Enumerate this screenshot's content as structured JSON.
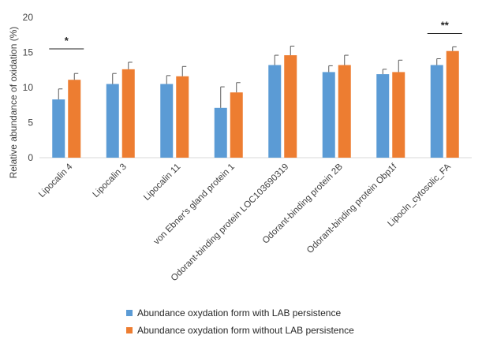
{
  "chart_data": {
    "type": "bar",
    "ylabel": "Relative abundance of oxidation (%)",
    "ylim": [
      0,
      20
    ],
    "yticks": [
      "0",
      "5",
      "10",
      "15",
      "20"
    ],
    "grid": false,
    "legend_position": "bottom",
    "categories": [
      "Lipocalin 4",
      "Lipocalin 3",
      "Lipocalin 11",
      "von Ebner's gland protein 1",
      "Odorant-binding protein LOC103690319",
      "Odorant-binding protein 2B",
      "Odorant-binding protein Obp1f",
      "Lipocln_cytosolic_FA"
    ],
    "series": [
      {
        "name": "Abundance oxydation form with LAB persistence",
        "color": "#5B9BD5",
        "values": [
          8.3,
          10.5,
          10.5,
          7.1,
          13.2,
          12.2,
          11.9,
          13.2
        ],
        "errors": [
          1.5,
          1.5,
          1.2,
          3.0,
          1.4,
          0.9,
          0.7,
          0.9
        ]
      },
      {
        "name": "Abundance oxydation form without LAB persistence",
        "color": "#ED7D31",
        "values": [
          11.1,
          12.6,
          11.6,
          9.3,
          14.6,
          13.2,
          12.2,
          15.2
        ],
        "errors": [
          0.9,
          1.0,
          1.4,
          1.4,
          1.3,
          1.4,
          1.7,
          0.6
        ]
      }
    ],
    "annotations": [
      {
        "category_index": 0,
        "text": "*",
        "level": 15.5
      },
      {
        "category_index": 7,
        "text": "**",
        "level": 17.7
      }
    ]
  }
}
